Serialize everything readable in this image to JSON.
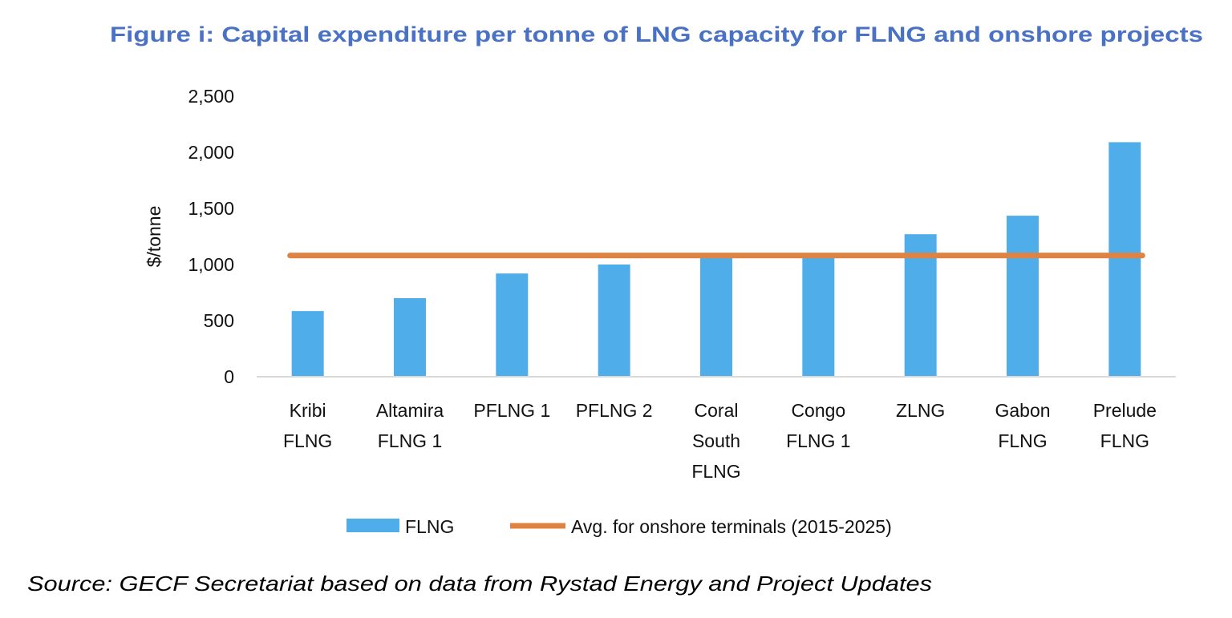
{
  "chart_data": {
    "type": "bar",
    "title": "Figure i: Capital expenditure per tonne of LNG capacity for FLNG and onshore projects",
    "xlabel": "",
    "ylabel": "$/tonne",
    "ylim": [
      0,
      2500
    ],
    "yticks": [
      "0",
      "500",
      "1,000",
      "1,500",
      "2,000",
      "2,500"
    ],
    "grid": false,
    "categories": [
      [
        "Kribi",
        "FLNG"
      ],
      [
        "Altamira",
        "FLNG 1"
      ],
      [
        "PFLNG 1"
      ],
      [
        "PFLNG 2"
      ],
      [
        "Coral",
        "South",
        "FLNG"
      ],
      [
        "Congo",
        "FLNG 1"
      ],
      [
        "ZLNG"
      ],
      [
        "Gabon",
        "FLNG"
      ],
      [
        "Prelude",
        "FLNG"
      ]
    ],
    "series": [
      {
        "name": "FLNG",
        "type": "bar",
        "color": "#4faeea",
        "values": [
          585,
          700,
          920,
          1000,
          1070,
          1070,
          1270,
          1435,
          2090
        ]
      },
      {
        "name": "Avg. for onshore terminals (2015-2025)",
        "type": "line",
        "color": "#df8344",
        "value": 1080
      }
    ],
    "legend": "bottom"
  },
  "source": "Source: GECF Secretariat based on data from Rystad Energy and Project Updates"
}
